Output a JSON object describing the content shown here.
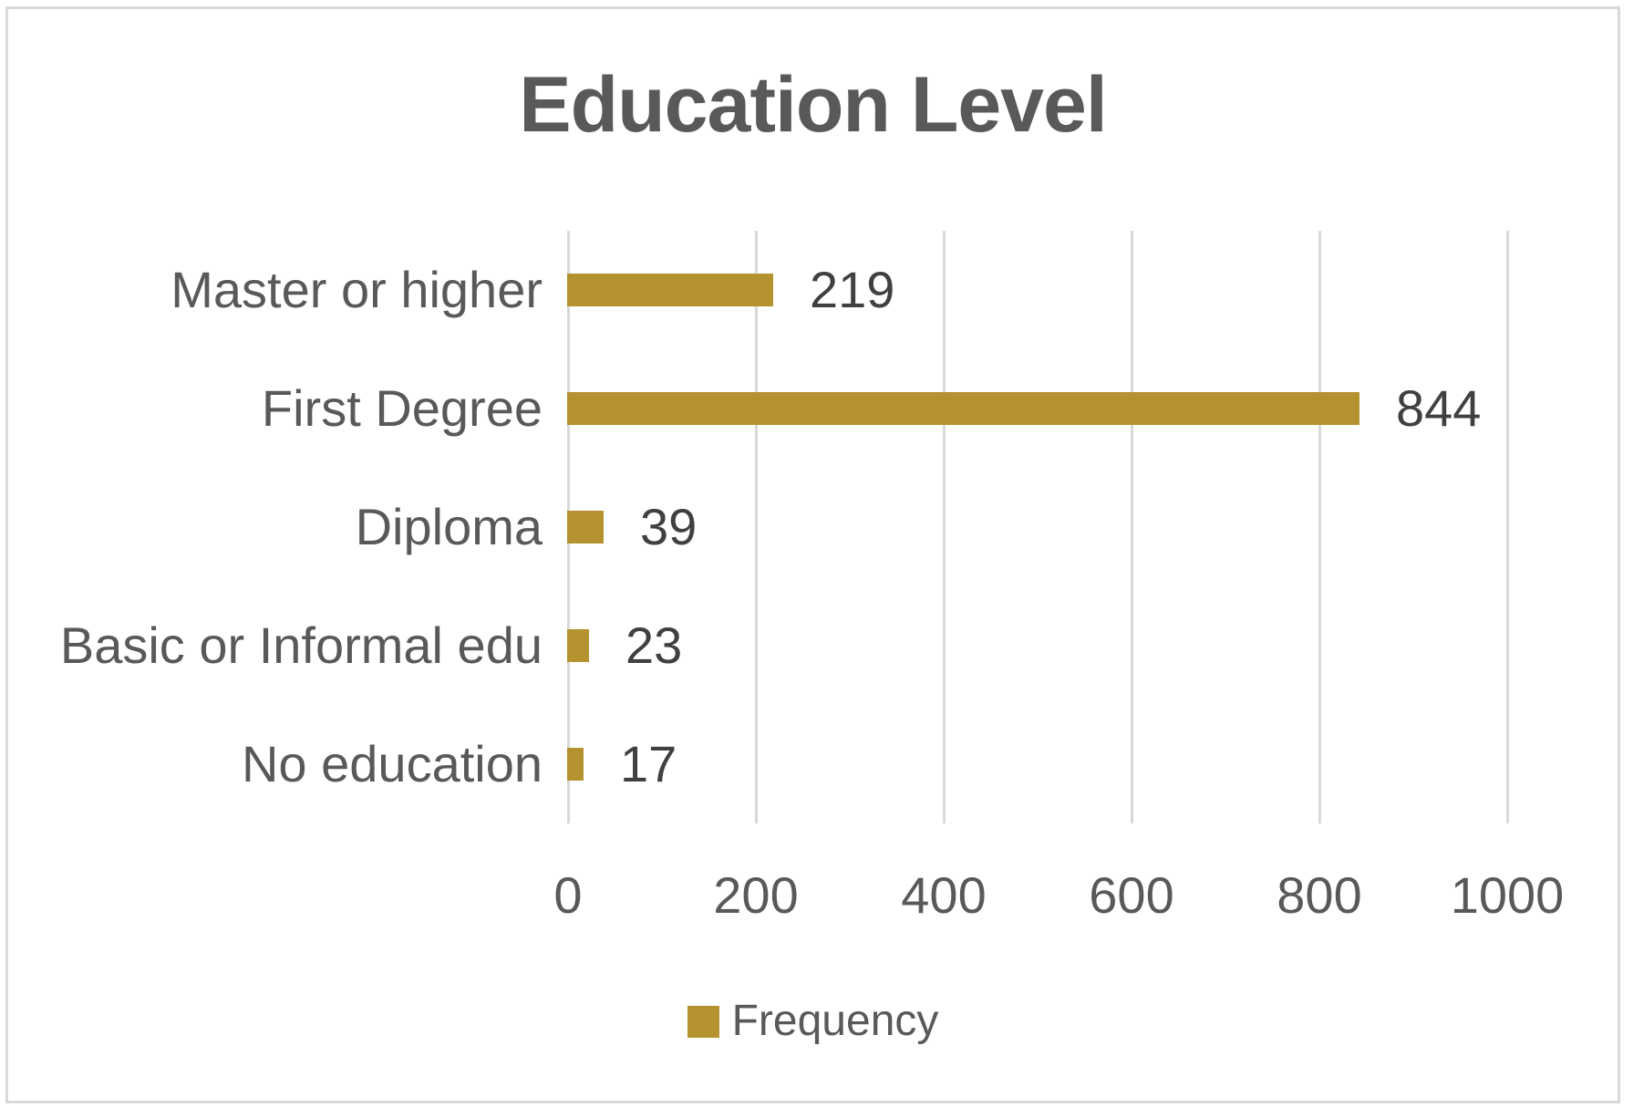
{
  "chart_data": {
    "type": "bar",
    "orientation": "horizontal",
    "title": "Education Level",
    "categories": [
      "Master or higher",
      "First Degree",
      "Diploma",
      "Basic or Informal edu",
      "No education"
    ],
    "series": [
      {
        "name": "Frequency",
        "values": [
          219,
          844,
          39,
          23,
          17
        ]
      }
    ],
    "data_labels": [
      "219",
      "844",
      "39",
      "23",
      "17"
    ],
    "xlabel": "",
    "ylabel": "",
    "xlim": [
      0,
      1000
    ],
    "x_ticks": [
      0,
      200,
      400,
      600,
      800,
      1000
    ],
    "grid": "vertical-only",
    "legend_position": "bottom-center",
    "legend_entries": [
      "Frequency"
    ],
    "colors": {
      "bar": "#B4922F",
      "title_text": "#595959",
      "axis_text": "#595959",
      "value_text": "#404040",
      "gridline": "#D9D9D9",
      "frame_border": "#D9D9D9",
      "background": "#FFFFFF"
    }
  }
}
